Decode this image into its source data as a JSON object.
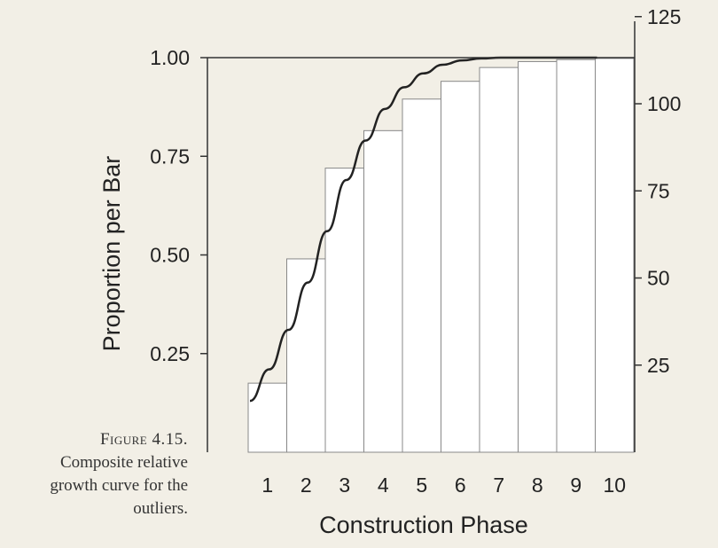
{
  "caption": {
    "label": "Figure 4.15.",
    "lines": [
      "Composite relative",
      "growth curve for the",
      "outliers."
    ]
  },
  "chart_data": {
    "type": "bar",
    "title": "",
    "xlabel": "Construction Phase",
    "ylabel": "Proportion per Bar",
    "categories": [
      "1",
      "2",
      "3",
      "4",
      "5",
      "6",
      "7",
      "8",
      "9",
      "10"
    ],
    "values": [
      0.175,
      0.49,
      0.72,
      0.815,
      0.895,
      0.94,
      0.975,
      0.99,
      0.995,
      0.998
    ],
    "ylim": [
      0,
      1.0
    ],
    "yticks": [
      "0.25",
      "0.50",
      "0.75",
      "1.00"
    ],
    "ytick_values": [
      0.25,
      0.5,
      0.75,
      1.0
    ],
    "y2ticks": [
      "25",
      "50",
      "75",
      "100",
      "125"
    ],
    "y2tick_values": [
      25,
      50,
      75,
      100,
      125
    ],
    "curve": {
      "x": [
        1,
        1.5,
        2,
        2.5,
        3,
        3.5,
        4,
        4.5,
        5,
        5.5,
        6,
        6.5,
        7,
        7.5,
        8,
        9,
        10
      ],
      "y": [
        0.13,
        0.21,
        0.31,
        0.43,
        0.56,
        0.69,
        0.79,
        0.87,
        0.925,
        0.96,
        0.982,
        0.993,
        0.998,
        1.0,
        1.0,
        1.0,
        1.0
      ]
    },
    "grid": false,
    "colors": {
      "bar_fill": "#ffffff",
      "bar_stroke": "#888888",
      "curve": "#222222",
      "axis": "#333333"
    }
  }
}
